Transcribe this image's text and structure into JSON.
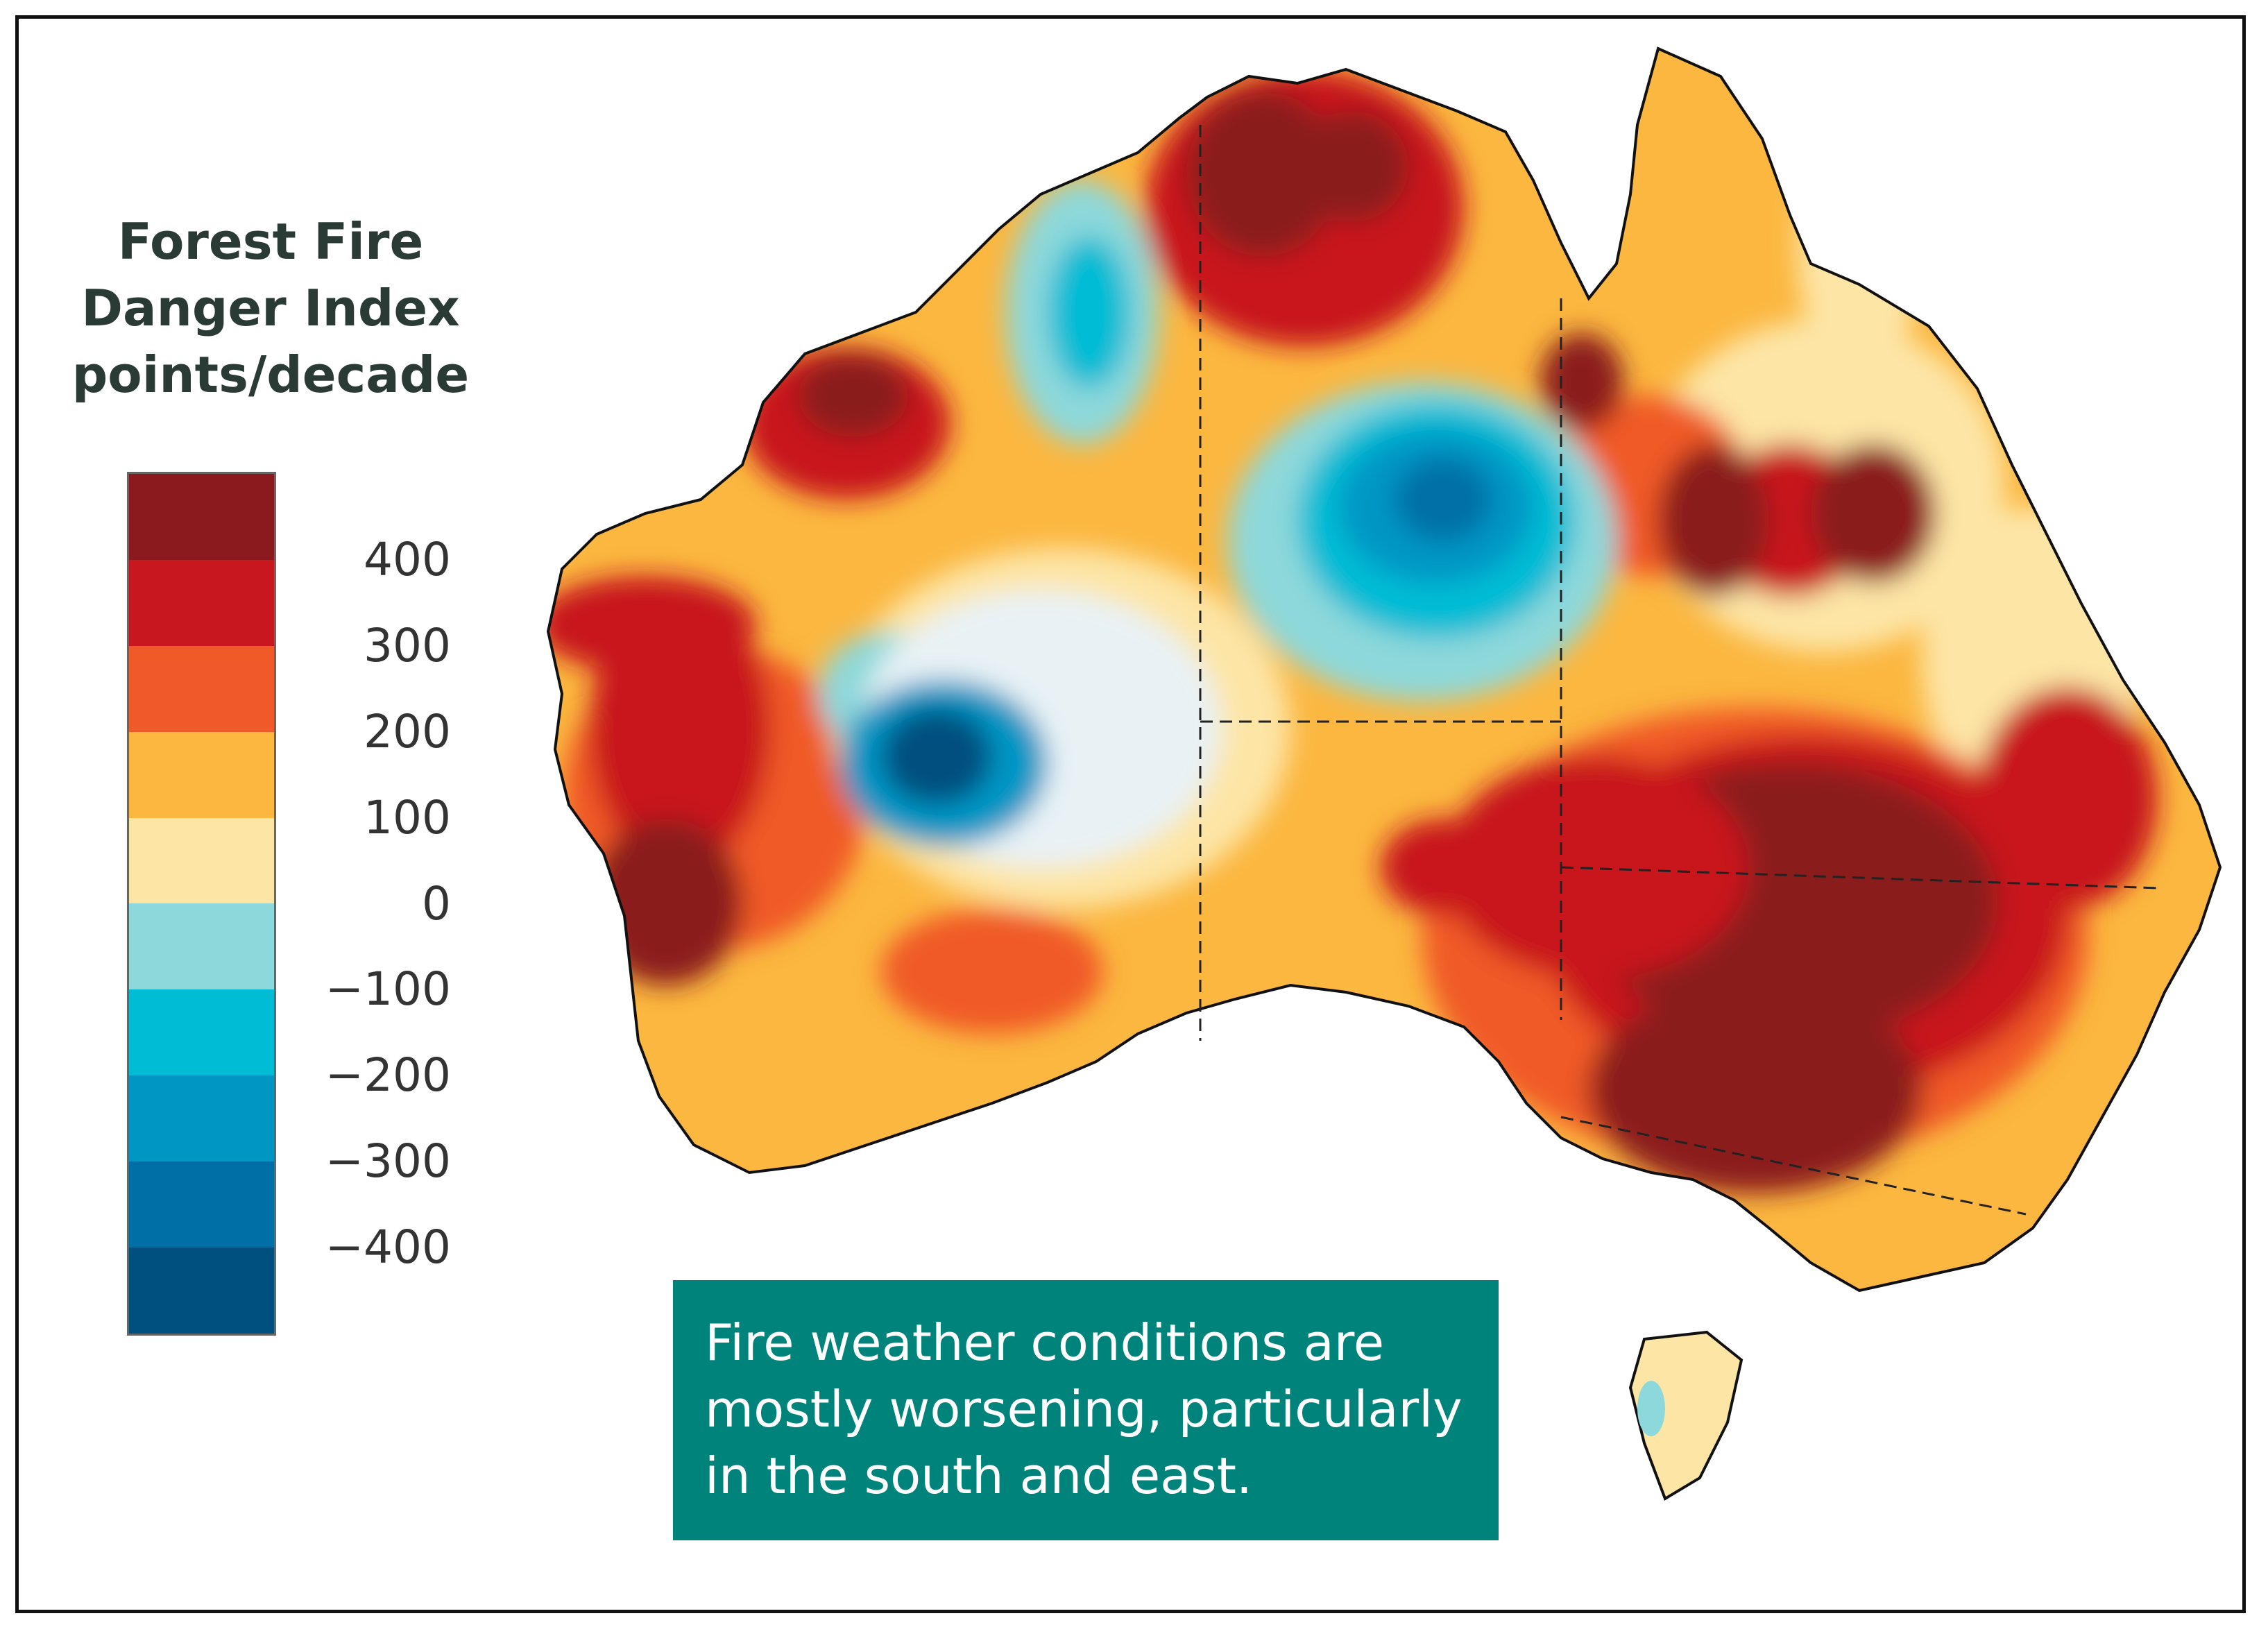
{
  "legend": {
    "title_lines": [
      "Forest Fire",
      "Danger Index",
      "points/decade"
    ],
    "colors": [
      "#8b1a1e",
      "#c8171e",
      "#f05a28",
      "#fbb740",
      "#fde5a6",
      "#8dd8da",
      "#00bcd4",
      "#0096c4",
      "#006fa6",
      "#00507f"
    ],
    "ticks": [
      "400",
      "300",
      "200",
      "100",
      "0",
      "−100",
      "−200",
      "−300",
      "−400"
    ]
  },
  "callout": {
    "text": "Fire weather conditions are mostly worsening, particularly in the south and east."
  },
  "map": {
    "region": "Australia",
    "variable": "Forest Fire Danger Index trend"
  }
}
